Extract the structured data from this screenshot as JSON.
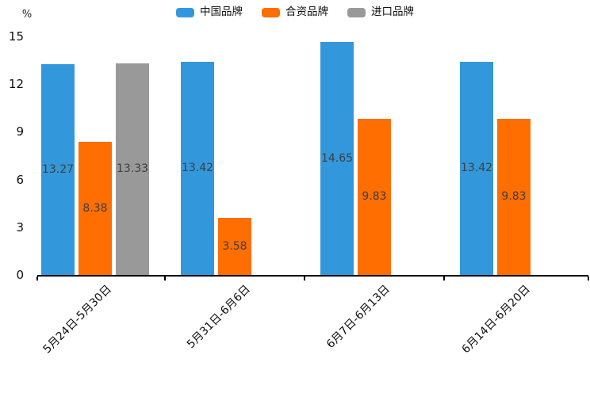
{
  "chart_data": {
    "type": "bar",
    "title": "",
    "categories": [
      "5月24日-5月30日",
      "5月31日-6月6日",
      "6月7日-6月13日",
      "6月14日-6月20日"
    ],
    "series": [
      {
        "name": "中国品牌",
        "color": "#3398DB",
        "values": [
          13.27,
          13.42,
          14.65,
          13.42
        ]
      },
      {
        "name": "合资品牌",
        "color": "#FF6E00",
        "values": [
          8.38,
          3.58,
          9.83,
          9.83
        ]
      },
      {
        "name": "进口品牌",
        "color": "#999999",
        "values": [
          13.33,
          null,
          null,
          null
        ]
      }
    ],
    "ylabel": "%",
    "xlabel": "",
    "ylim": [
      0,
      15
    ],
    "yticks": [
      "0",
      "3",
      "6",
      "9",
      "12",
      "15"
    ],
    "grid": false,
    "legend_position": "top",
    "value_label_decimals": 2,
    "colors": {
      "axis": "#000000",
      "tick_label": "#111111",
      "value_label": "#3f3f3f",
      "background": "#ffffff"
    }
  }
}
